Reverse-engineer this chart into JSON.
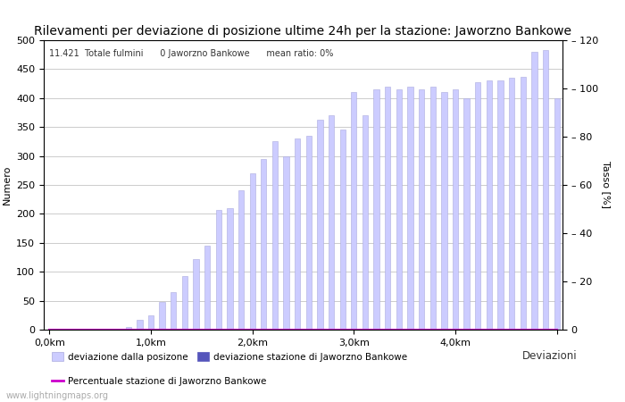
{
  "title": "Rilevamenti per deviazione di posizione ultime 24h per la stazione: Jaworzno Bankowe",
  "ylabel_left": "Numero",
  "ylabel_right": "Tasso [%]",
  "annotation": "11.421  Totale fulmini      0 Jaworzno Bankowe      mean ratio: 0%",
  "xlim": [
    -0.5,
    45.5
  ],
  "ylim_left": [
    0,
    500
  ],
  "ylim_right": [
    0,
    120
  ],
  "xtick_positions": [
    0,
    9,
    18,
    27,
    36,
    45
  ],
  "xtick_labels": [
    "0,0km",
    "1,0km",
    "2,0km",
    "3,0km",
    "4,0km",
    ""
  ],
  "ytick_left": [
    0,
    50,
    100,
    150,
    200,
    250,
    300,
    350,
    400,
    450,
    500
  ],
  "ytick_right": [
    0,
    20,
    40,
    60,
    80,
    100,
    120
  ],
  "bar_values": [
    0,
    0,
    0,
    0,
    0,
    0,
    2,
    5,
    17,
    24,
    48,
    65,
    92,
    122,
    145,
    207,
    210,
    240,
    270,
    295,
    325,
    300,
    330,
    335,
    363,
    370,
    345,
    410,
    370,
    415,
    420,
    415,
    420,
    415,
    420,
    410,
    415,
    400,
    428,
    430,
    430,
    435,
    436,
    480,
    483,
    400
  ],
  "bar_color": "#ccccff",
  "bar_edge_color": "#aaaadd",
  "station_bar_values": [
    0,
    0,
    0,
    0,
    0,
    0,
    0,
    0,
    0,
    0,
    0,
    0,
    0,
    0,
    0,
    0,
    0,
    0,
    0,
    0,
    0,
    0,
    0,
    0,
    0,
    0,
    0,
    0,
    0,
    0,
    0,
    0,
    0,
    0,
    0,
    0,
    0,
    0,
    0,
    0,
    0,
    0,
    0,
    0,
    0,
    0
  ],
  "ratio_line": [
    0,
    0,
    0,
    0,
    0,
    0,
    0,
    0,
    0,
    0,
    0,
    0,
    0,
    0,
    0,
    0,
    0,
    0,
    0,
    0,
    0,
    0,
    0,
    0,
    0,
    0,
    0,
    0,
    0,
    0,
    0,
    0,
    0,
    0,
    0,
    0,
    0,
    0,
    0,
    0,
    0,
    0,
    0,
    0,
    0,
    0
  ],
  "legend_label_bar": "deviazione dalla posizone",
  "legend_label_station": "deviazione stazione di Jaworzno Bankowe",
  "legend_label_line": "Percentuale stazione di Jaworzno Bankowe",
  "legend_xlabel": "Deviazioni",
  "bar_color_station": "#5555bb",
  "line_color": "#cc00cc",
  "background_color": "#ffffff",
  "grid_color": "#cccccc",
  "watermark": "www.lightningmaps.org",
  "title_fontsize": 10,
  "axis_fontsize": 8,
  "tick_fontsize": 8,
  "bar_width": 0.5
}
